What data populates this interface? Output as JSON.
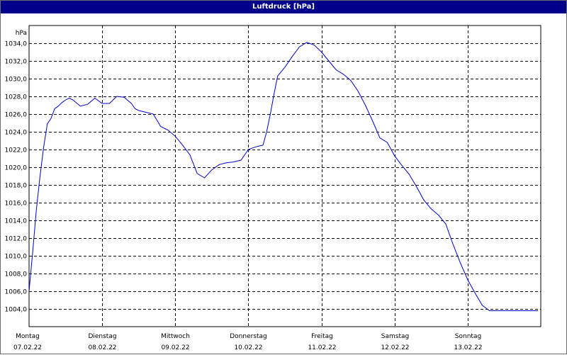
{
  "window": {
    "title": "Luftdruck [hPa]"
  },
  "chart_data": {
    "type": "line",
    "title": "Luftdruck [hPa]",
    "ylabel": "hPa",
    "xlabel": "",
    "ylim": [
      1002.0,
      1036.0
    ],
    "yticks": [
      "1004,0",
      "1006,0",
      "1008,0",
      "1010,0",
      "1012,0",
      "1014,0",
      "1016,0",
      "1018,0",
      "1020,0",
      "1022,0",
      "1024,0",
      "1026,0",
      "1028,0",
      "1030,0",
      "1032,0",
      "1034,0"
    ],
    "xlim": [
      0,
      7
    ],
    "xtick_days": [
      "Montag",
      "Dienstag",
      "Mittwoch",
      "Donnerstag",
      "Freitag",
      "Samstag",
      "Sonntag"
    ],
    "xtick_dates": [
      "07.02.22",
      "08.02.22",
      "09.02.22",
      "10.02.22",
      "11.02.22",
      "12.02.22",
      "13.02.22"
    ],
    "grid": true,
    "line_color": "#0000cc",
    "grid_color": "#000000",
    "x": [
      0,
      0.05,
      0.1,
      0.15,
      0.2,
      0.25,
      0.3,
      0.35,
      0.4,
      0.45,
      0.5,
      0.55,
      0.6,
      0.7,
      0.8,
      0.9,
      1.0,
      1.1,
      1.2,
      1.3,
      1.4,
      1.45,
      1.5,
      1.6,
      1.7,
      1.75,
      1.8,
      1.9,
      2.0,
      2.1,
      2.2,
      2.3,
      2.4,
      2.5,
      2.6,
      2.7,
      2.8,
      2.9,
      3.0,
      3.1,
      3.15,
      3.2,
      3.25,
      3.3,
      3.35,
      3.4,
      3.5,
      3.6,
      3.7,
      3.8,
      3.9,
      4.0,
      4.1,
      4.2,
      4.3,
      4.4,
      4.5,
      4.6,
      4.7,
      4.8,
      4.9,
      5.0,
      5.1,
      5.2,
      5.3,
      5.4,
      5.5,
      5.6,
      5.7,
      5.8,
      5.9,
      6.0,
      6.1,
      6.2,
      6.3,
      6.4,
      6.5,
      6.6,
      6.7,
      6.8,
      6.9,
      6.96
    ],
    "series": [
      {
        "values": [
          1006.0,
          1010.5,
          1015.2,
          1019.0,
          1022.3,
          1024.9,
          1025.5,
          1026.6,
          1026.9,
          1027.3,
          1027.6,
          1027.8,
          1027.6,
          1026.9,
          1027.1,
          1027.8,
          1027.2,
          1027.2,
          1028.0,
          1027.9,
          1027.2,
          1026.6,
          1026.4,
          1026.2,
          1026.0,
          1025.3,
          1024.6,
          1024.2,
          1023.5,
          1022.5,
          1021.4,
          1019.3,
          1018.8,
          1019.7,
          1020.3,
          1020.5,
          1020.6,
          1020.8,
          1022.0,
          1022.3,
          1022.4,
          1022.5,
          1024.0,
          1026.0,
          1028.2,
          1030.3,
          1031.3,
          1032.5,
          1033.6,
          1034.1,
          1033.8,
          1033.0,
          1032.0,
          1031.0,
          1030.5,
          1029.8,
          1028.6,
          1027.0,
          1025.2,
          1023.3,
          1022.8,
          1021.3,
          1020.2,
          1019.2,
          1017.8,
          1016.3,
          1015.3,
          1014.6,
          1013.6,
          1011.3,
          1009.2,
          1007.3,
          1005.8,
          1004.4,
          1003.8,
          1003.8,
          1003.8,
          1003.8,
          1003.8,
          1003.8,
          1003.8,
          1003.8
        ]
      }
    ]
  }
}
